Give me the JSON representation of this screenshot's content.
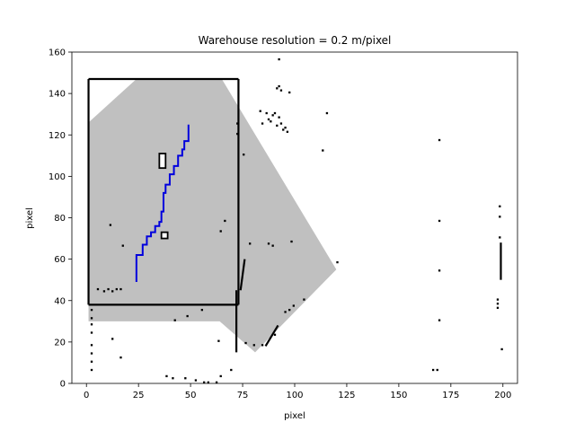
{
  "chart_data": {
    "type": "heatmap",
    "title": "Warehouse resolution = 0.2 m/pixel",
    "xlabel": "pixel",
    "ylabel": "pixel",
    "xlim": [
      -7,
      207
    ],
    "ylim": [
      0,
      160
    ],
    "xticks": [
      0,
      25,
      50,
      75,
      100,
      125,
      150,
      175,
      200
    ],
    "yticks": [
      0,
      20,
      40,
      60,
      80,
      100,
      120,
      140,
      160
    ],
    "colors": {
      "free": "#ffffff",
      "obstacle": "#000000",
      "explored": "#c0c0c0",
      "path": "#0000dd"
    },
    "explored_region": [
      [
        24,
        147
      ],
      [
        65,
        147
      ],
      [
        120,
        55
      ],
      [
        81,
        15
      ],
      [
        64,
        30
      ],
      [
        1,
        30
      ],
      [
        1,
        126
      ]
    ],
    "walls": [
      {
        "x": [
          1,
          73
        ],
        "y": [
          147,
          147
        ]
      },
      {
        "x": [
          1,
          1
        ],
        "y": [
          38,
          147
        ]
      },
      {
        "x": [
          1,
          73
        ],
        "y": [
          38,
          38
        ]
      },
      {
        "x": [
          73,
          73
        ],
        "y": [
          38,
          147
        ]
      },
      {
        "x": [
          72,
          72
        ],
        "y": [
          15,
          45
        ]
      },
      {
        "x": [
          74,
          76
        ],
        "y": [
          45,
          60
        ]
      },
      {
        "x": [
          86,
          92
        ],
        "y": [
          18,
          28
        ]
      },
      {
        "x": [
          199,
          199
        ],
        "y": [
          50,
          68
        ]
      }
    ],
    "obstacles": [
      {
        "x": [
          35,
          38
        ],
        "y": [
          104,
          111
        ]
      },
      {
        "x": [
          36,
          39
        ],
        "y": [
          70,
          73
        ]
      }
    ],
    "speckles": [
      [
        92,
        143
      ],
      [
        91,
        142
      ],
      [
        93,
        141
      ],
      [
        97,
        140
      ],
      [
        92,
        156
      ],
      [
        83,
        131
      ],
      [
        84,
        125
      ],
      [
        86,
        130
      ],
      [
        87,
        127
      ],
      [
        88,
        126
      ],
      [
        89,
        129
      ],
      [
        90,
        130
      ],
      [
        91,
        124
      ],
      [
        92,
        128
      ],
      [
        93,
        125
      ],
      [
        94,
        122
      ],
      [
        95,
        123
      ],
      [
        96,
        121
      ],
      [
        115,
        130
      ],
      [
        113,
        112
      ],
      [
        169,
        117
      ],
      [
        169,
        78
      ],
      [
        169,
        54
      ],
      [
        169,
        30
      ],
      [
        198,
        85
      ],
      [
        198,
        80
      ],
      [
        198,
        70
      ],
      [
        197,
        40
      ],
      [
        197,
        38
      ],
      [
        197,
        36
      ],
      [
        5,
        45
      ],
      [
        8,
        44
      ],
      [
        10,
        45
      ],
      [
        12,
        44
      ],
      [
        14,
        45
      ],
      [
        16,
        45
      ],
      [
        2,
        35
      ],
      [
        2,
        31
      ],
      [
        2,
        28
      ],
      [
        2,
        24
      ],
      [
        2,
        18
      ],
      [
        2,
        14
      ],
      [
        2,
        10
      ],
      [
        2,
        6
      ],
      [
        12,
        21
      ],
      [
        16,
        12
      ],
      [
        38,
        3
      ],
      [
        41,
        2
      ],
      [
        47,
        2
      ],
      [
        52,
        1
      ],
      [
        56,
        0
      ],
      [
        58,
        0
      ],
      [
        62,
        0
      ],
      [
        64,
        3
      ],
      [
        69,
        6
      ],
      [
        76,
        19
      ],
      [
        80,
        18
      ],
      [
        84,
        18
      ],
      [
        90,
        23
      ],
      [
        95,
        34
      ],
      [
        97,
        35
      ],
      [
        99,
        37
      ],
      [
        104,
        40
      ],
      [
        63,
        20
      ],
      [
        55,
        35
      ],
      [
        48,
        32
      ],
      [
        42,
        30
      ],
      [
        166,
        6
      ],
      [
        168,
        6
      ],
      [
        199,
        16
      ],
      [
        120,
        58
      ],
      [
        78,
        67
      ],
      [
        87,
        67
      ],
      [
        89,
        66
      ],
      [
        98,
        68
      ],
      [
        66,
        78
      ],
      [
        64,
        73
      ],
      [
        17,
        66
      ],
      [
        11,
        76
      ],
      [
        75,
        110
      ],
      [
        72,
        120
      ],
      [
        72,
        125
      ]
    ],
    "path": {
      "name": "",
      "x": [
        24,
        24,
        27,
        27,
        29,
        29,
        31,
        31,
        33,
        33,
        35,
        35,
        36,
        36,
        37,
        37,
        38,
        38,
        40,
        40,
        42,
        42,
        44,
        44,
        46,
        46,
        47,
        47,
        49,
        49
      ],
      "y": [
        49,
        62,
        62,
        67,
        67,
        71,
        71,
        73,
        73,
        76,
        76,
        78,
        78,
        83,
        83,
        92,
        92,
        96,
        96,
        101,
        101,
        105,
        105,
        110,
        110,
        113,
        113,
        117,
        117,
        125
      ]
    }
  }
}
